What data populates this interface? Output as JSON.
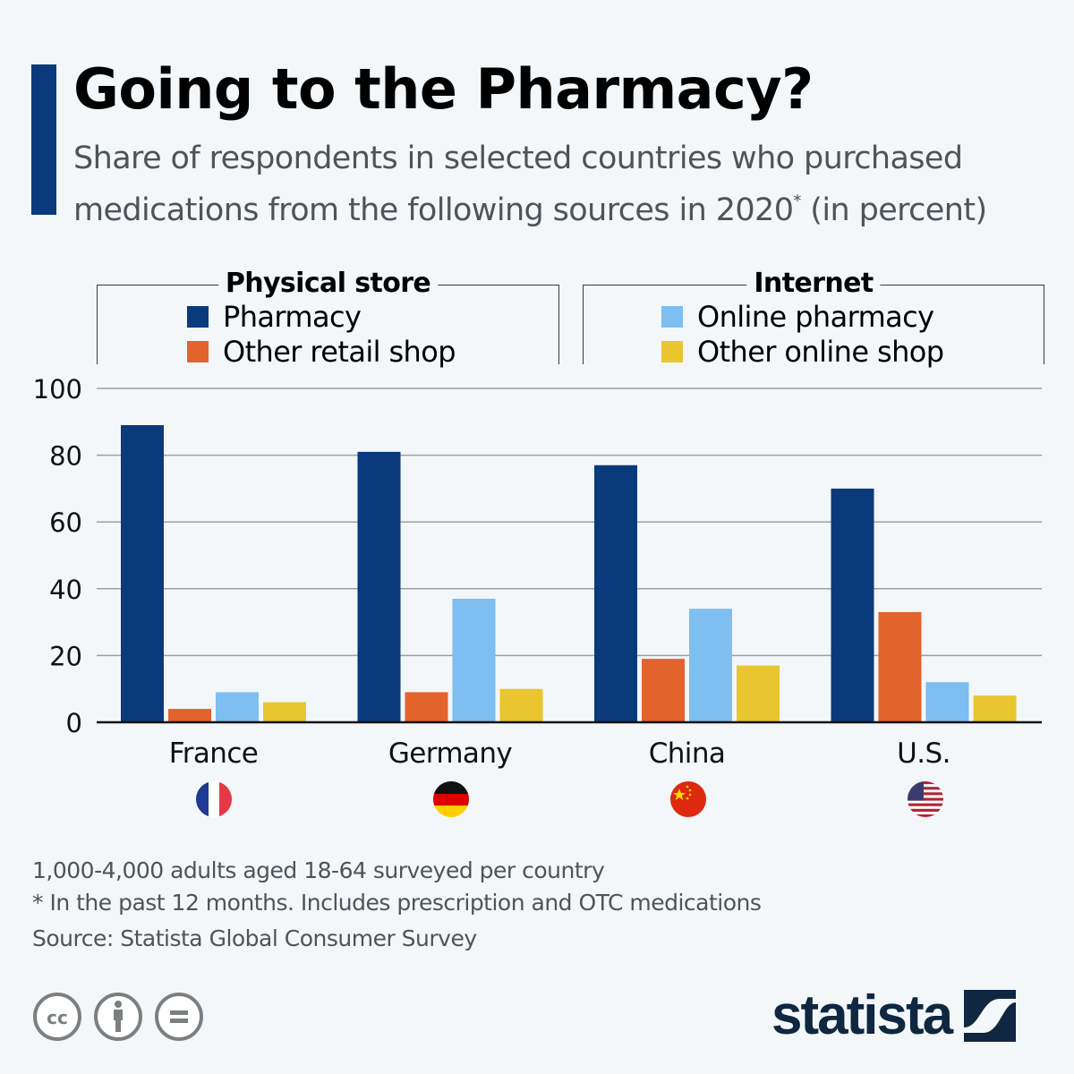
{
  "header": {
    "title": "Going to the Pharmacy?",
    "subtitle_line1": "Share of respondents in selected countries who purchased",
    "subtitle_line2_pre": "medications from the following sources in 2020",
    "subtitle_sup": "*",
    "subtitle_line2_post": " (in percent)"
  },
  "colors": {
    "accent": "#0a3a7c",
    "pharmacy": "#0a3a7c",
    "other_retail_shop": "#e2632c",
    "online_pharmacy": "#7ebef0",
    "other_online_shop": "#e9c52f",
    "gridline": "#9aa0a6",
    "axis": "#111111"
  },
  "legend": {
    "groups": [
      {
        "heading": "Physical store",
        "items": [
          {
            "label": "Pharmacy",
            "icon": "square-swatch",
            "color": "#0a3a7c"
          },
          {
            "label": "Other retail shop",
            "icon": "square-swatch",
            "color": "#e2632c"
          }
        ]
      },
      {
        "heading": "Internet",
        "items": [
          {
            "label": "Online pharmacy",
            "icon": "square-swatch",
            "color": "#7ebef0"
          },
          {
            "label": "Other online shop",
            "icon": "square-swatch",
            "color": "#e9c52f"
          }
        ]
      }
    ]
  },
  "chart_data": {
    "type": "bar",
    "title": "Going to the Pharmacy?",
    "subtitle": "Share of respondents in selected countries who purchased medications from the following sources in 2020* (in percent)",
    "xlabel": "",
    "ylabel": "",
    "categories": [
      "France",
      "Germany",
      "China",
      "U.S."
    ],
    "series": [
      {
        "name": "Pharmacy",
        "group": "Physical store",
        "color": "#0a3a7c",
        "values": [
          89,
          81,
          77,
          70
        ]
      },
      {
        "name": "Other retail shop",
        "group": "Physical store",
        "color": "#e2632c",
        "values": [
          4,
          9,
          19,
          33
        ]
      },
      {
        "name": "Online pharmacy",
        "group": "Internet",
        "color": "#7ebef0",
        "values": [
          9,
          37,
          34,
          12
        ]
      },
      {
        "name": "Other online shop",
        "group": "Internet",
        "color": "#e9c52f",
        "values": [
          6,
          10,
          17,
          8
        ]
      }
    ],
    "ylim": [
      0,
      100
    ],
    "yticks": [
      0,
      20,
      40,
      60,
      80,
      100
    ],
    "grid": true,
    "legend_position": "top"
  },
  "flags": [
    {
      "country": "France",
      "icon": "flag-france-icon"
    },
    {
      "country": "Germany",
      "icon": "flag-germany-icon"
    },
    {
      "country": "China",
      "icon": "flag-china-icon"
    },
    {
      "country": "U.S.",
      "icon": "flag-us-icon"
    }
  ],
  "footer": {
    "note1": "1,000-4,000 adults aged 18-64 surveyed per country",
    "note2": "* In the past 12 months. Includes prescription and OTC medications",
    "source": "Source: Statista Global Consumer Survey",
    "license_icons": [
      "creative-commons-icon",
      "attribution-icon",
      "no-derivatives-icon"
    ],
    "logo_text": "statista"
  }
}
